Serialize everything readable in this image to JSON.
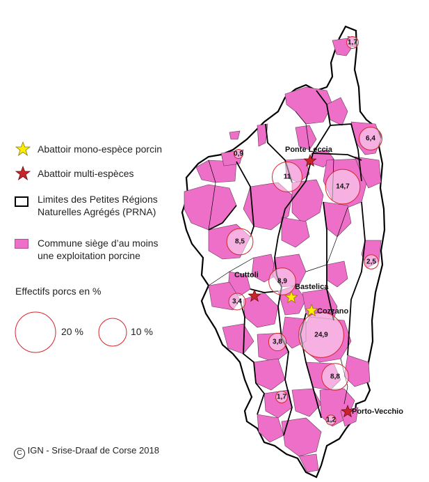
{
  "legend": {
    "mono": "Abattoir mono-espèce porcin",
    "multi": "Abattoir multi-espèces",
    "limits": "Limites des Petites Régions\nNaturelles Agrégés (PRNA)",
    "commune": "Commune siège d’au moins\nune exploitation porcine",
    "effectifs_title": "Effectifs porcs en %",
    "scale_20": "20 %",
    "scale_10": "10 %"
  },
  "credit": "IGN - Srise-Draaf de Corse 2018",
  "colors": {
    "commune_fill": "#ee6fc8",
    "circle_stroke": "#d8232a",
    "circle_fill": "rgba(255,255,255,0.45)",
    "mono_star": "#ffee00",
    "multi_star": "#c9242a"
  },
  "abattoirs": [
    {
      "name": "Ponte Leccia",
      "type": "multi"
    },
    {
      "name": "Cuttoli",
      "type": "multi"
    },
    {
      "name": "Bastelica",
      "type": "mono"
    },
    {
      "name": "Cozzano",
      "type": "mono"
    },
    {
      "name": "Porto-Vecchio",
      "type": "multi"
    }
  ],
  "effectifs": [
    {
      "label": "1,7",
      "value": 1.7
    },
    {
      "label": "6,4",
      "value": 6.4
    },
    {
      "label": "0,9",
      "value": 0.9
    },
    {
      "label": "11",
      "value": 11
    },
    {
      "label": "14,7",
      "value": 14.7
    },
    {
      "label": "8,5",
      "value": 8.5
    },
    {
      "label": "2,5",
      "value": 2.5
    },
    {
      "label": "8,9",
      "value": 8.9
    },
    {
      "label": "3,4",
      "value": 3.4
    },
    {
      "label": "24,9",
      "value": 24.9
    },
    {
      "label": "3,8",
      "value": 3.8
    },
    {
      "label": "8,8",
      "value": 8.8
    },
    {
      "label": "1,7",
      "value": 1.7
    },
    {
      "label": "1,2",
      "value": 1.2
    }
  ]
}
